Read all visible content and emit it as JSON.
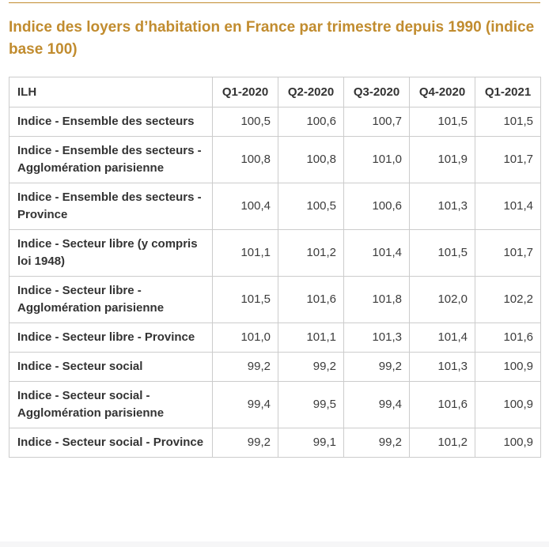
{
  "header": {
    "title": "Indice des loyers d’habitation en France par trimestre depuis 1990 (indice base 100)"
  },
  "colors": {
    "accent": "#c18c2f",
    "table_border": "#cccccc",
    "text": "#333333"
  },
  "table": {
    "columns": [
      "ILH",
      "Q1-2020",
      "Q2-2020",
      "Q3-2020",
      "Q4-2020",
      "Q1-2021"
    ],
    "rows": [
      {
        "label": "Indice - Ensemble des secteurs",
        "values": [
          "100,5",
          "100,6",
          "100,7",
          "101,5",
          "101,5"
        ]
      },
      {
        "label": "Indice - Ensemble des secteurs - Agglomération parisienne",
        "values": [
          "100,8",
          "100,8",
          "101,0",
          "101,9",
          "101,7"
        ]
      },
      {
        "label": "Indice - Ensemble des secteurs - Province",
        "values": [
          "100,4",
          "100,5",
          "100,6",
          "101,3",
          "101,4"
        ]
      },
      {
        "label": "Indice - Secteur libre (y compris loi 1948)",
        "values": [
          "101,1",
          "101,2",
          "101,4",
          "101,5",
          "101,7"
        ]
      },
      {
        "label": "Indice - Secteur libre - Agglomération parisienne",
        "values": [
          "101,5",
          "101,6",
          "101,8",
          "102,0",
          "102,2"
        ]
      },
      {
        "label": "Indice - Secteur libre - Province",
        "values": [
          "101,0",
          "101,1",
          "101,3",
          "101,4",
          "101,6"
        ]
      },
      {
        "label": "Indice - Secteur social",
        "values": [
          "99,2",
          "99,2",
          "99,2",
          "101,3",
          "100,9"
        ]
      },
      {
        "label": "Indice - Secteur social - Agglomération parisienne",
        "values": [
          "99,4",
          "99,5",
          "99,4",
          "101,6",
          "100,9"
        ]
      },
      {
        "label": "Indice - Secteur social - Province",
        "values": [
          "99,2",
          "99,1",
          "99,2",
          "101,2",
          "100,9"
        ]
      }
    ]
  }
}
